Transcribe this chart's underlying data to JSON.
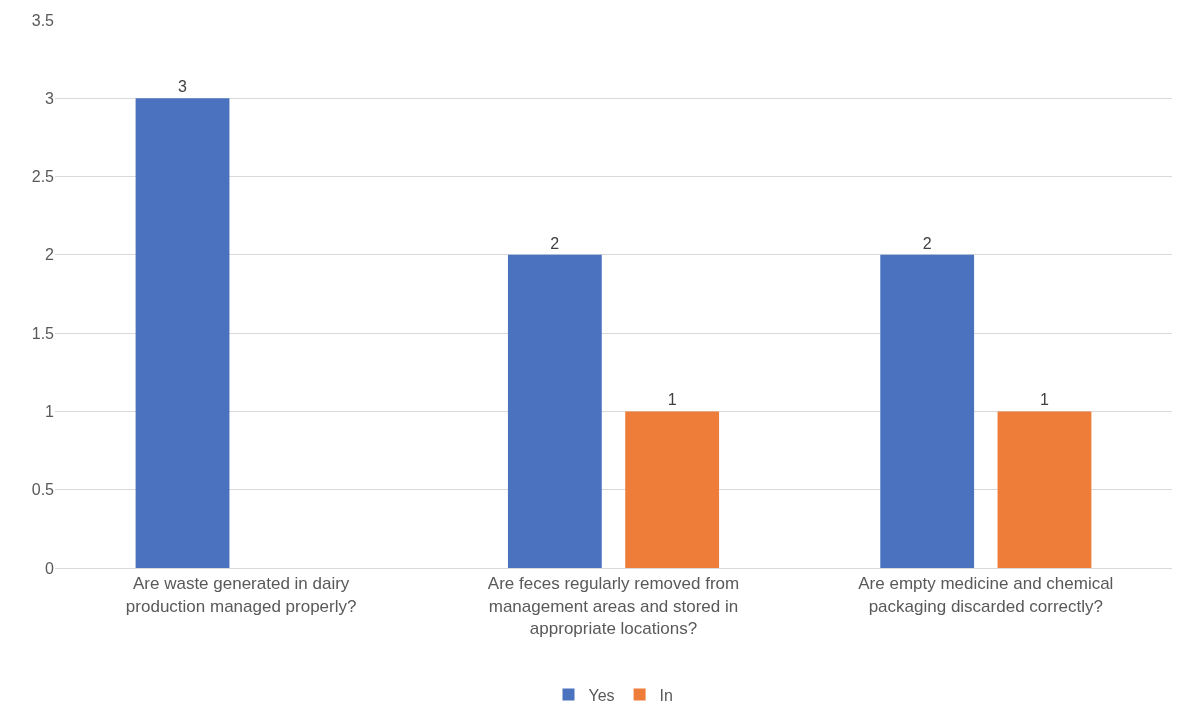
{
  "chart_data": {
    "type": "bar",
    "categories": [
      "Are waste generated in dairy production managed properly?",
      "Are feces regularly removed from management areas and stored in appropriate locations?",
      "Are empty medicine and chemical packaging discarded correctly?"
    ],
    "series": [
      {
        "name": "Yes",
        "color": "#4a72be",
        "values": [
          3,
          2,
          2
        ]
      },
      {
        "name": "In",
        "color": "#ee7d3a",
        "values": [
          null,
          1,
          1
        ]
      }
    ],
    "ylim": [
      0,
      3.5
    ],
    "yticks": [
      0,
      0.5,
      1,
      1.5,
      2,
      2.5,
      3,
      3.5
    ],
    "grid": "y",
    "legend": "bottom",
    "data_labels": true
  }
}
